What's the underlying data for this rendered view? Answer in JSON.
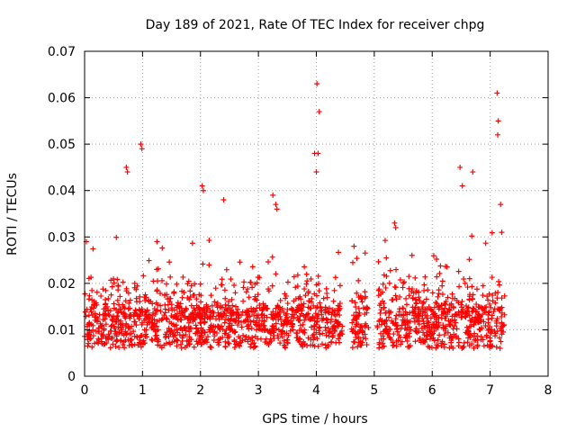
{
  "chart_data": {
    "type": "scatter",
    "title": "Day 189 of 2021, Rate Of TEC Index for receiver chpg",
    "xlabel": "GPS time / hours",
    "ylabel": "ROTI / TECUs",
    "xlim": [
      0,
      8
    ],
    "ylim": [
      0,
      0.07
    ],
    "xticks": [
      "0",
      "1",
      "2",
      "3",
      "4",
      "5",
      "6",
      "7",
      "8"
    ],
    "yticks": [
      "0",
      "0.01",
      "0.02",
      "0.03",
      "0.04",
      "0.05",
      "0.06",
      "0.07"
    ],
    "grid": true,
    "marker": "+",
    "color": "#ff0000",
    "coverage": [
      [
        0.0,
        4.45
      ],
      [
        4.6,
        4.9
      ],
      [
        5.05,
        7.25
      ]
    ],
    "series": [
      {
        "name": "ROTI",
        "outliers": [
          {
            "x": 0.97,
            "y": 0.05
          },
          {
            "x": 0.99,
            "y": 0.049
          },
          {
            "x": 0.72,
            "y": 0.045
          },
          {
            "x": 0.74,
            "y": 0.044
          },
          {
            "x": 2.03,
            "y": 0.041
          },
          {
            "x": 2.05,
            "y": 0.04
          },
          {
            "x": 3.3,
            "y": 0.037
          },
          {
            "x": 3.32,
            "y": 0.036
          },
          {
            "x": 4.01,
            "y": 0.063
          },
          {
            "x": 4.05,
            "y": 0.057
          },
          {
            "x": 3.97,
            "y": 0.048
          },
          {
            "x": 4.0,
            "y": 0.044
          },
          {
            "x": 4.03,
            "y": 0.048
          },
          {
            "x": 5.35,
            "y": 0.033
          },
          {
            "x": 5.37,
            "y": 0.032
          },
          {
            "x": 6.48,
            "y": 0.045
          },
          {
            "x": 6.52,
            "y": 0.041
          },
          {
            "x": 6.7,
            "y": 0.044
          },
          {
            "x": 7.12,
            "y": 0.061
          },
          {
            "x": 7.14,
            "y": 0.055
          },
          {
            "x": 7.13,
            "y": 0.052
          },
          {
            "x": 7.18,
            "y": 0.037
          },
          {
            "x": 7.2,
            "y": 0.031
          },
          {
            "x": 0.03,
            "y": 0.029
          },
          {
            "x": 4.65,
            "y": 0.028
          },
          {
            "x": 1.25,
            "y": 0.029
          },
          {
            "x": 2.4,
            "y": 0.038
          },
          {
            "x": 3.25,
            "y": 0.039
          }
        ]
      }
    ]
  }
}
